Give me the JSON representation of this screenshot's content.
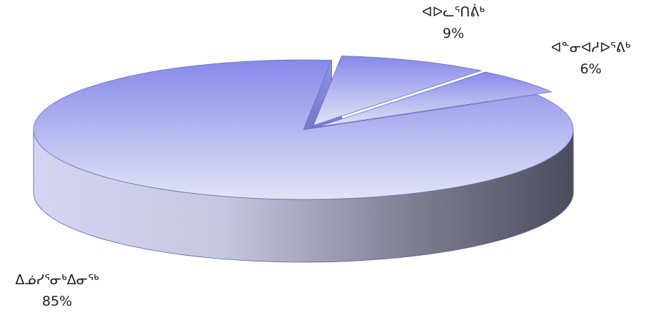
{
  "chart_data": {
    "type": "pie",
    "style": "3d-exploded",
    "legend": "none",
    "categories": [
      "ᐃᓅᓯᕐᓂᒃᐃᓂᖅ",
      "ᐊᐅᓚᕐᑎᕖᒃ",
      "ᐊᓐᓂᐊᓱᐅᕐᕕᒃ"
    ],
    "values": [
      85,
      9,
      6
    ],
    "labels": [
      "85%",
      "9%",
      "6%"
    ]
  },
  "colors": {
    "top_light": "#e2e4f6",
    "top_dark": "#8589e9",
    "side_light": "#d3d5f2",
    "side_dark": "#4b4d5c"
  }
}
